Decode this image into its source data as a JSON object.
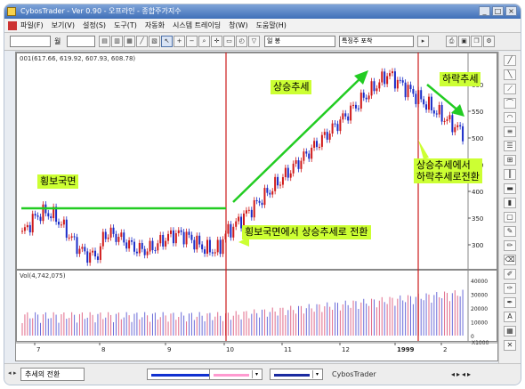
{
  "window": {
    "title": "CybosTrader - Ver 0.90 - 오프라인 - 종합주가지수"
  },
  "menu": {
    "items": [
      "파일(F)",
      "보기(V)",
      "설정(S)",
      "도구(T)",
      "자동화",
      "시스템 트레이딩",
      "창(W)",
      "도움말(H)"
    ]
  },
  "toolbar": {
    "code_value": "",
    "period_label": "월",
    "period_value": "",
    "indicator_value": "일 봉",
    "search_value": "특징주 포착"
  },
  "chart": {
    "price_info": "001(617.66, 619.92, 607.93, 608.78)",
    "volume_info": "Vol(4,742,075)",
    "y_ticks": [
      "600",
      "550",
      "500",
      "450",
      "400",
      "350",
      "300"
    ],
    "vol_ticks": [
      "40000",
      "30000",
      "20000",
      "10000",
      "0"
    ],
    "vol_unit": "X1000",
    "x_labels": [
      "7",
      "8",
      "9",
      "10",
      "11",
      "12",
      "1999",
      "2"
    ]
  },
  "annotations": {
    "sideways": "횡보국면",
    "uptrend": "상승추세",
    "downtrend": "하락추세",
    "sideways_to_up": "횡보국면에서 상승추세로 전환",
    "up_to_down_1": "상승추세에서",
    "up_to_down_2": "하락추세로전환"
  },
  "bottombar": {
    "tab_label": "추세의 전환",
    "brand": "CybosTrader",
    "swatch_colors": [
      "#1030d0",
      "#ff9ad0",
      "#1a2aa0"
    ]
  },
  "colors": {
    "up_candle": "#d01a1a",
    "down_candle": "#1a2cc8",
    "annotation_bg": "#ccff33",
    "trend_arrow": "#22cc22",
    "divider": "#cc1a1a"
  }
}
